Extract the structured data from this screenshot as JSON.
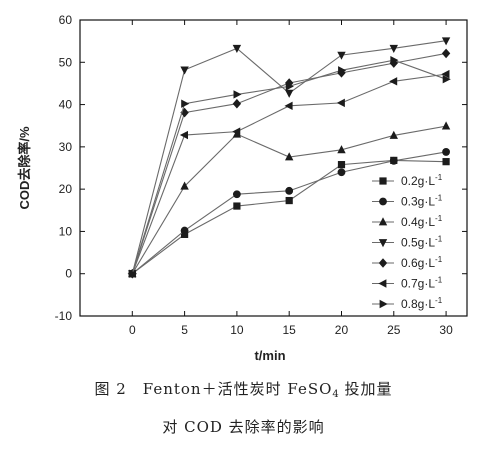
{
  "chart_data": {
    "type": "line",
    "xlabel": "t/min",
    "ylabel": "COD去除率/%",
    "xlim": [
      -5,
      32
    ],
    "ylim": [
      -10,
      60
    ],
    "xticks": [
      0,
      5,
      10,
      15,
      20,
      25,
      30
    ],
    "yticks": [
      -10,
      0,
      10,
      20,
      30,
      40,
      50,
      60
    ],
    "x": [
      0,
      5,
      10,
      15,
      20,
      25,
      30
    ],
    "legend_position": "lower-right",
    "grid": false,
    "series": [
      {
        "name": "0.2g·L",
        "name_sup": "-1",
        "marker": "square",
        "values": [
          0,
          9.3,
          16.0,
          17.3,
          25.8,
          26.8,
          26.5
        ]
      },
      {
        "name": "0.3g·L",
        "name_sup": "-1",
        "marker": "circle",
        "values": [
          0,
          10.2,
          18.8,
          19.6,
          24.0,
          26.7,
          28.8
        ]
      },
      {
        "name": "0.4g·L",
        "name_sup": "-1",
        "marker": "triangle-up",
        "values": [
          0,
          20.7,
          33.0,
          27.6,
          29.3,
          32.7,
          34.9
        ]
      },
      {
        "name": "0.5g·L",
        "name_sup": "-1",
        "marker": "triangle-down",
        "values": [
          0,
          48.2,
          53.3,
          42.7,
          51.7,
          53.3,
          55.1
        ]
      },
      {
        "name": "0.6g·L",
        "name_sup": "-1",
        "marker": "diamond",
        "values": [
          0,
          38.1,
          40.2,
          45.1,
          47.5,
          49.8,
          52.1
        ]
      },
      {
        "name": "0.7g·L",
        "name_sup": "-1",
        "marker": "triangle-left",
        "values": [
          0,
          32.8,
          33.6,
          39.7,
          40.4,
          45.5,
          47.2
        ]
      },
      {
        "name": "0.8g·L",
        "name_sup": "-1",
        "marker": "triangle-right",
        "values": [
          0,
          40.2,
          42.4,
          44.3,
          48.1,
          50.5,
          46.0
        ]
      }
    ]
  },
  "caption": {
    "line1_prefix": "图 2　Fenton＋活性炭时 FeSO",
    "line1_sub": "4",
    "line1_suffix": " 投加量",
    "line2": "对 COD 去除率的影响"
  },
  "colors": {
    "line": "#6a6a6a",
    "marker": "#1c1c1c",
    "axis": "#111111"
  }
}
